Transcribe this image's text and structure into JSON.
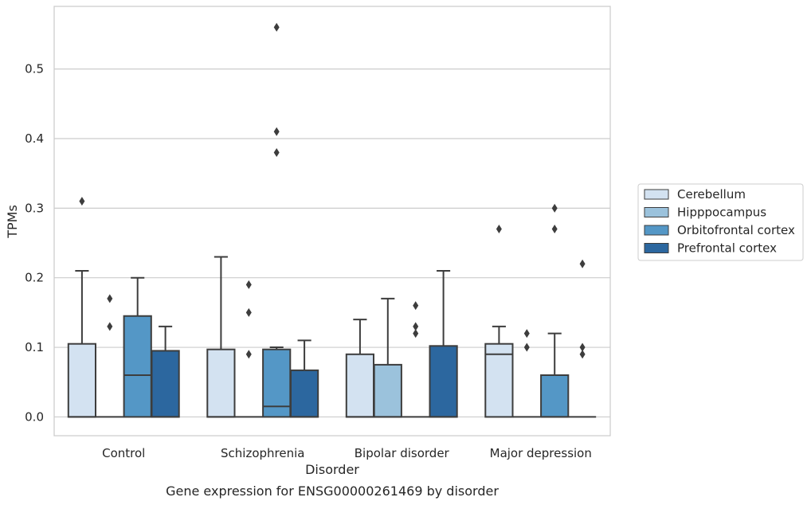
{
  "chart_data": {
    "type": "boxplot",
    "title": "",
    "caption": "Gene expression for ENSG00000261469 by disorder",
    "xlabel": "Disorder",
    "ylabel": "TPMs",
    "ylim": [
      -0.027,
      0.59
    ],
    "yticks": [
      "0.0",
      "0.1",
      "0.2",
      "0.3",
      "0.4",
      "0.5"
    ],
    "grid": "horizontal",
    "legend_position": "right",
    "categories": [
      "Control",
      "Schizophrenia",
      "Bipolar disorder",
      "Major depression"
    ],
    "series": [
      {
        "name": "Cerebellum",
        "color": "#d3e2f1",
        "boxes": [
          {
            "q1": 0.0,
            "median": 0.0,
            "q3": 0.105,
            "whisker_low": 0.0,
            "whisker_high": 0.21,
            "outliers": [
              0.31
            ]
          },
          {
            "q1": 0.0,
            "median": 0.0,
            "q3": 0.097,
            "whisker_low": 0.0,
            "whisker_high": 0.23,
            "outliers": []
          },
          {
            "q1": 0.0,
            "median": 0.0,
            "q3": 0.09,
            "whisker_low": 0.0,
            "whisker_high": 0.14,
            "outliers": []
          },
          {
            "q1": 0.0,
            "median": 0.09,
            "q3": 0.105,
            "whisker_low": 0.0,
            "whisker_high": 0.13,
            "outliers": [
              0.27
            ]
          }
        ]
      },
      {
        "name": "Hipppocampus",
        "color": "#9bc2dc",
        "boxes": [
          {
            "q1": 0.0,
            "median": 0.0,
            "q3": 0.0,
            "whisker_low": 0.0,
            "whisker_high": 0.0,
            "outliers": [
              0.17,
              0.13
            ]
          },
          {
            "q1": 0.0,
            "median": 0.0,
            "q3": 0.0,
            "whisker_low": 0.0,
            "whisker_high": 0.0,
            "outliers": [
              0.19,
              0.15,
              0.09
            ]
          },
          {
            "q1": 0.0,
            "median": 0.0,
            "q3": 0.075,
            "whisker_low": 0.0,
            "whisker_high": 0.17,
            "outliers": []
          },
          {
            "q1": 0.0,
            "median": 0.0,
            "q3": 0.0,
            "whisker_low": 0.0,
            "whisker_high": 0.0,
            "outliers": [
              0.12,
              0.1
            ]
          }
        ]
      },
      {
        "name": "Orbitofrontal cortex",
        "color": "#5497c6",
        "boxes": [
          {
            "q1": 0.0,
            "median": 0.06,
            "q3": 0.145,
            "whisker_low": 0.0,
            "whisker_high": 0.2,
            "outliers": []
          },
          {
            "q1": 0.0,
            "median": 0.015,
            "q3": 0.097,
            "whisker_low": 0.0,
            "whisker_high": 0.1,
            "outliers": [
              0.56,
              0.41,
              0.38
            ]
          },
          {
            "q1": 0.0,
            "median": 0.0,
            "q3": 0.0,
            "whisker_low": 0.0,
            "whisker_high": 0.0,
            "outliers": [
              0.16,
              0.13,
              0.12
            ]
          },
          {
            "q1": 0.0,
            "median": 0.0,
            "q3": 0.06,
            "whisker_low": 0.0,
            "whisker_high": 0.12,
            "outliers": [
              0.3,
              0.27
            ]
          }
        ]
      },
      {
        "name": "Prefrontal cortex",
        "color": "#2c679f",
        "boxes": [
          {
            "q1": 0.0,
            "median": 0.0,
            "q3": 0.095,
            "whisker_low": 0.0,
            "whisker_high": 0.13,
            "outliers": []
          },
          {
            "q1": 0.0,
            "median": 0.0,
            "q3": 0.067,
            "whisker_low": 0.0,
            "whisker_high": 0.11,
            "outliers": []
          },
          {
            "q1": 0.0,
            "median": 0.0,
            "q3": 0.102,
            "whisker_low": 0.0,
            "whisker_high": 0.21,
            "outliers": []
          },
          {
            "q1": 0.0,
            "median": 0.0,
            "q3": 0.0,
            "whisker_low": 0.0,
            "whisker_high": 0.0,
            "outliers": [
              0.22,
              0.1,
              0.09
            ]
          }
        ]
      }
    ]
  }
}
